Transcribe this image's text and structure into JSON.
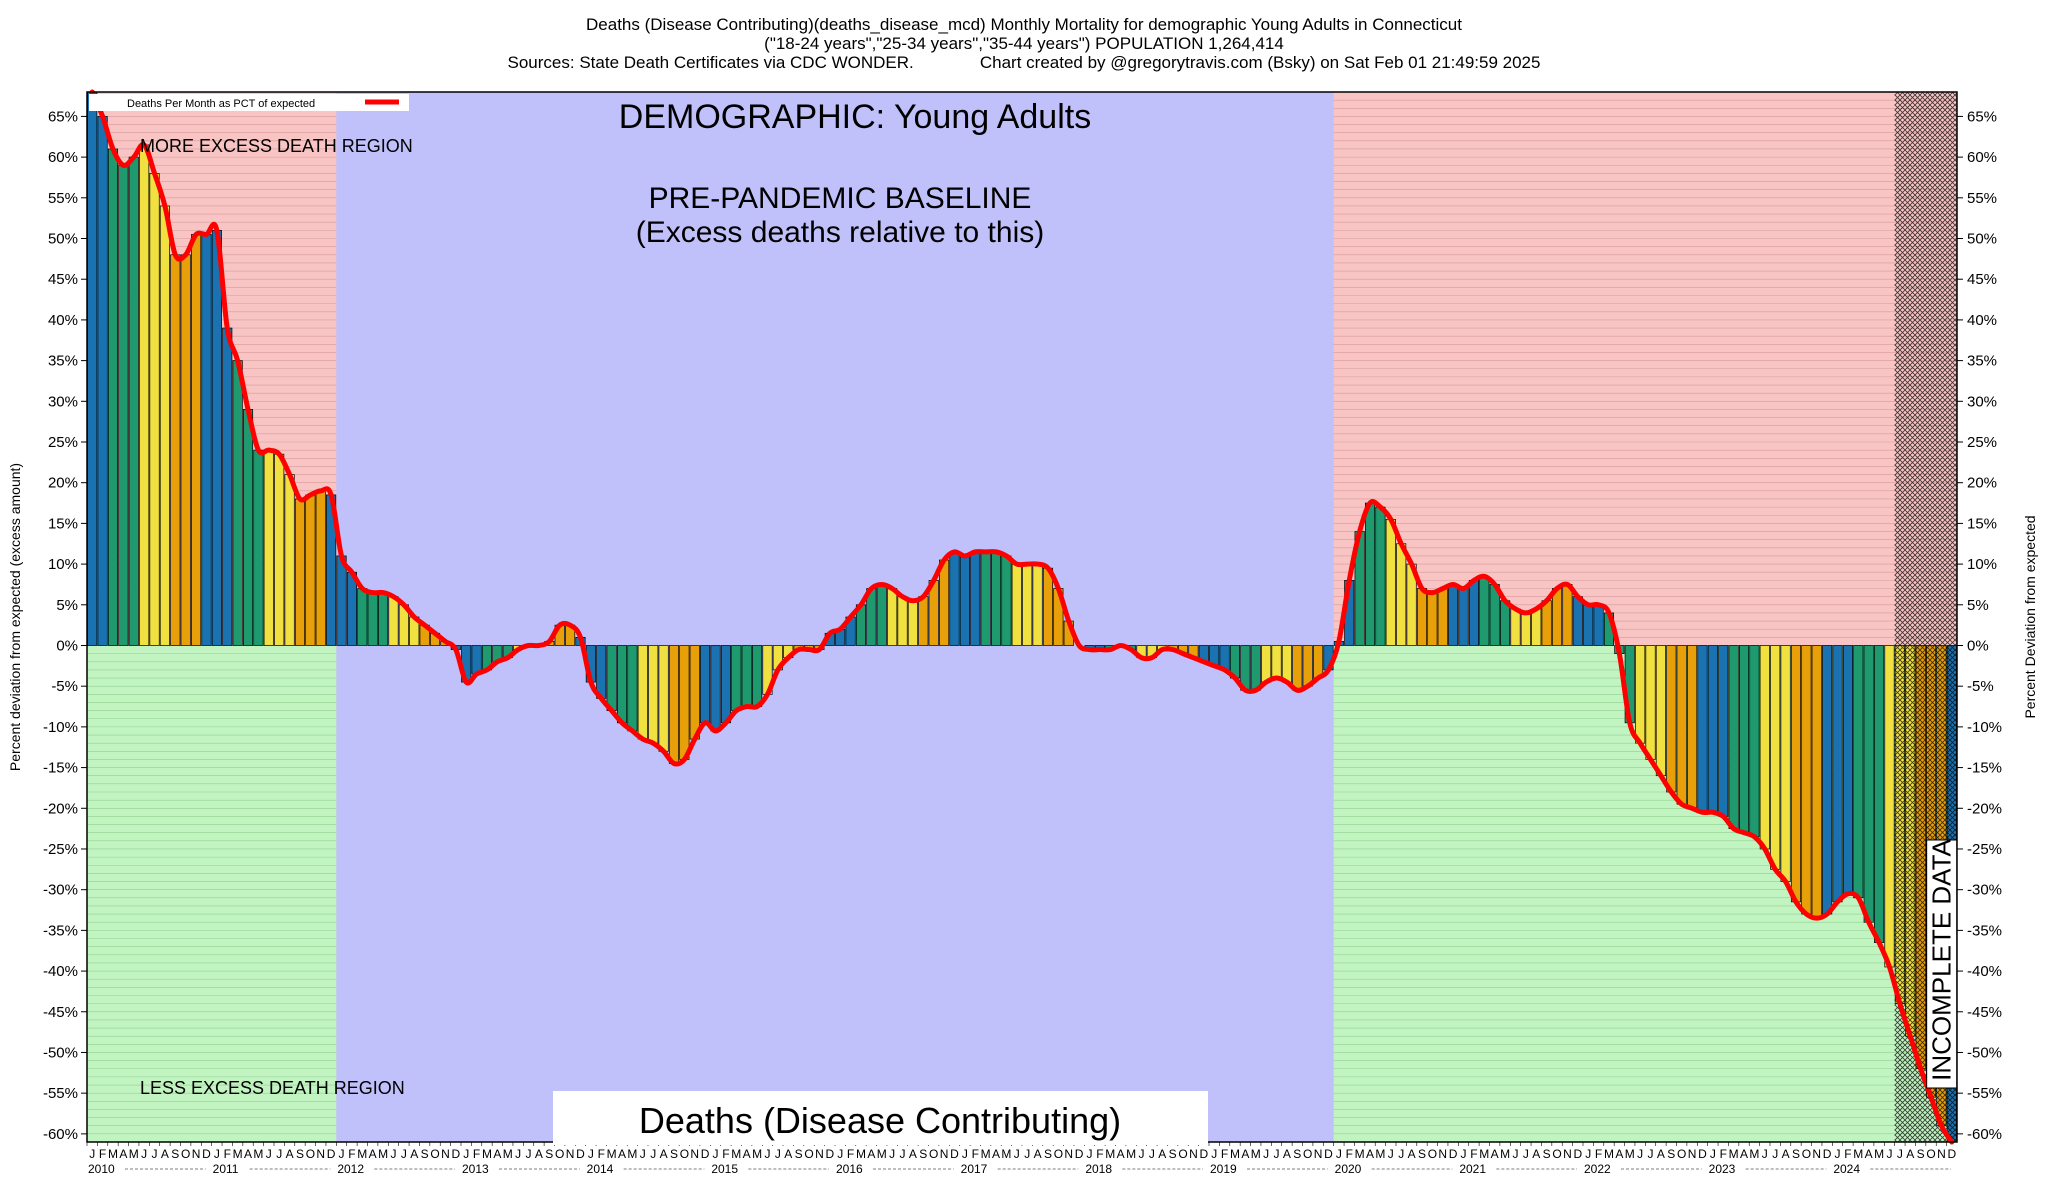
{
  "chart_data": {
    "type": "bar",
    "title_lines": [
      "Deaths (Disease Contributing)(deaths_disease_mcd) Monthly Mortality for demographic Young Adults in Connecticut",
      "(\"18-24 years\",\"25-34 years\",\"35-44 years\") POPULATION 1,264,414",
      "Sources: State Death Certificates via CDC WONDER.              Chart created by @gregorytravis.com (Bsky) on Sat Feb 01 21:49:59 2025"
    ],
    "ylabel_left": "Percent deviation from expected (excess amount)",
    "ylabel_right": "Percent Deviation from expected",
    "ylim": [
      -61,
      68
    ],
    "yticks": [
      65,
      60,
      55,
      50,
      45,
      40,
      35,
      30,
      25,
      20,
      15,
      10,
      5,
      0,
      -5,
      -10,
      -15,
      -20,
      -25,
      -30,
      -35,
      -40,
      -45,
      -50,
      -55,
      -60
    ],
    "legend": {
      "label": "Deaths Per Month as PCT of expected",
      "color": "#ff0000",
      "position": "top-left"
    },
    "annotations": {
      "demographic": "DEMOGRAPHIC: Young Adults",
      "baseline_line1": "PRE-PANDEMIC BASELINE",
      "baseline_line2": "(Excess deaths relative to this)",
      "more_excess": "MORE EXCESS DEATH REGION",
      "less_excess": "LESS EXCESS DEATH REGION",
      "metric": "Deaths (Disease Contributing)",
      "incomplete": "INCOMPLETE DATA"
    },
    "regions": {
      "baseline": {
        "start": "2012-01",
        "end": "2019-12",
        "color": "#c0c0fa"
      },
      "excess_positive_color": "#f8c4c4",
      "excess_negative_color": "#c2f4c2",
      "incomplete": {
        "start": "2024-07",
        "end": "2024-12"
      }
    },
    "season_colors": {
      "winter": "#1a72b0",
      "spring": "#1e9a6e",
      "summer": "#f0e040",
      "fall": "#e8a00a"
    },
    "month_letters": [
      "J",
      "F",
      "M",
      "A",
      "M",
      "J",
      "J",
      "A",
      "S",
      "O",
      "N",
      "D"
    ],
    "years": [
      "2010",
      "2011",
      "2012",
      "2013",
      "2014",
      "2015",
      "2016",
      "2017",
      "2018",
      "2019",
      "2020",
      "2021",
      "2022",
      "2023",
      "2024"
    ],
    "start_month": "2010-01",
    "values": [
      68,
      65,
      61,
      59,
      60,
      61.5,
      58,
      54,
      48,
      48,
      50.5,
      50.5,
      51,
      39,
      35,
      29,
      24,
      24,
      23.5,
      21,
      18,
      18.5,
      19,
      18.5,
      11,
      9,
      7,
      6.5,
      6.5,
      6,
      5,
      3.5,
      2.5,
      1.5,
      0.5,
      -0.5,
      -4.5,
      -3.5,
      -3,
      -2,
      -1.5,
      -0.5,
      0,
      0,
      0.5,
      2.5,
      2.5,
      1,
      -4.5,
      -6.5,
      -8,
      -9.5,
      -10.5,
      -11.5,
      -12,
      -13,
      -14.5,
      -14,
      -11.5,
      -9.5,
      -10.5,
      -9.5,
      -8,
      -7.5,
      -7.5,
      -6,
      -3,
      -1.5,
      -0.5,
      -0.5,
      -0.5,
      1.5,
      2,
      3.5,
      5,
      7,
      7.5,
      7,
      6,
      5.5,
      6,
      8,
      10.5,
      11.5,
      11,
      11.5,
      11.5,
      11.5,
      11,
      10,
      10,
      10,
      9.5,
      7,
      3,
      0,
      -0.5,
      -0.5,
      -0.5,
      0,
      -0.5,
      -1.5,
      -1.5,
      -0.5,
      -0.5,
      -1,
      -1.5,
      -2,
      -2.5,
      -3,
      -4,
      -5.5,
      -5.5,
      -4.5,
      -4,
      -4.5,
      -5.5,
      -5,
      -4,
      -3,
      0.5,
      8,
      14,
      17.5,
      17,
      15.5,
      12.5,
      10,
      7,
      6.5,
      7,
      7.5,
      7,
      8,
      8.5,
      7.5,
      5.5,
      4.5,
      4,
      4.5,
      5.5,
      7,
      7.5,
      6,
      5,
      5,
      4,
      -1,
      -9.5,
      -12,
      -14,
      -16,
      -18,
      -19.5,
      -20,
      -20.5,
      -20.5,
      -21,
      -22.5,
      -23,
      -23.5,
      -25,
      -27.5,
      -29,
      -31.5,
      -33,
      -33.5,
      -33,
      -31.5,
      -30.5,
      -31,
      -34,
      -36.5,
      -39.5,
      -44,
      -48,
      -52,
      -55.5,
      -59,
      -61
    ]
  }
}
